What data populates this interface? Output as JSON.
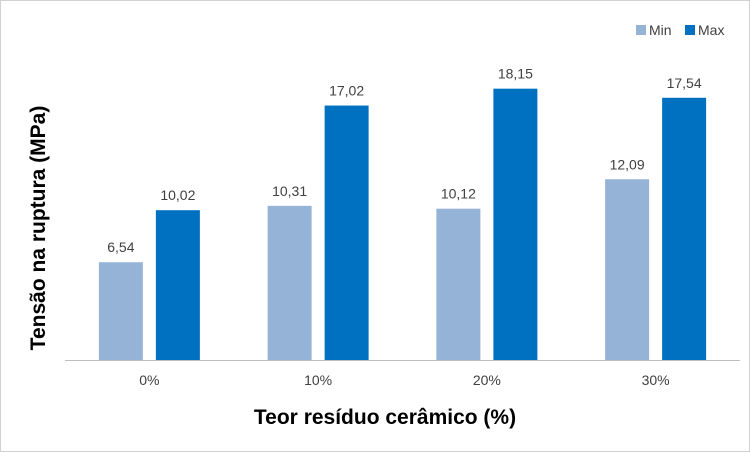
{
  "chart_data": {
    "type": "bar",
    "categories": [
      "0%",
      "10%",
      "20%",
      "30%"
    ],
    "series": [
      {
        "name": "Min",
        "values": [
          6.54,
          10.31,
          10.12,
          12.09
        ],
        "labels": [
          "6,54",
          "10,31",
          "10,12",
          "12,09"
        ],
        "color": "#95b3d7"
      },
      {
        "name": "Max",
        "values": [
          10.02,
          17.02,
          18.15,
          17.54
        ],
        "labels": [
          "10,02",
          "17,02",
          "18,15",
          "17,54"
        ],
        "color": "#0070c0"
      }
    ],
    "xlabel": "Teor resíduo cerâmico (%)",
    "ylabel": "Tensão na ruptura (MPa)",
    "ylim": [
      0,
      20
    ],
    "grid": false,
    "legend_position": "top-right"
  }
}
